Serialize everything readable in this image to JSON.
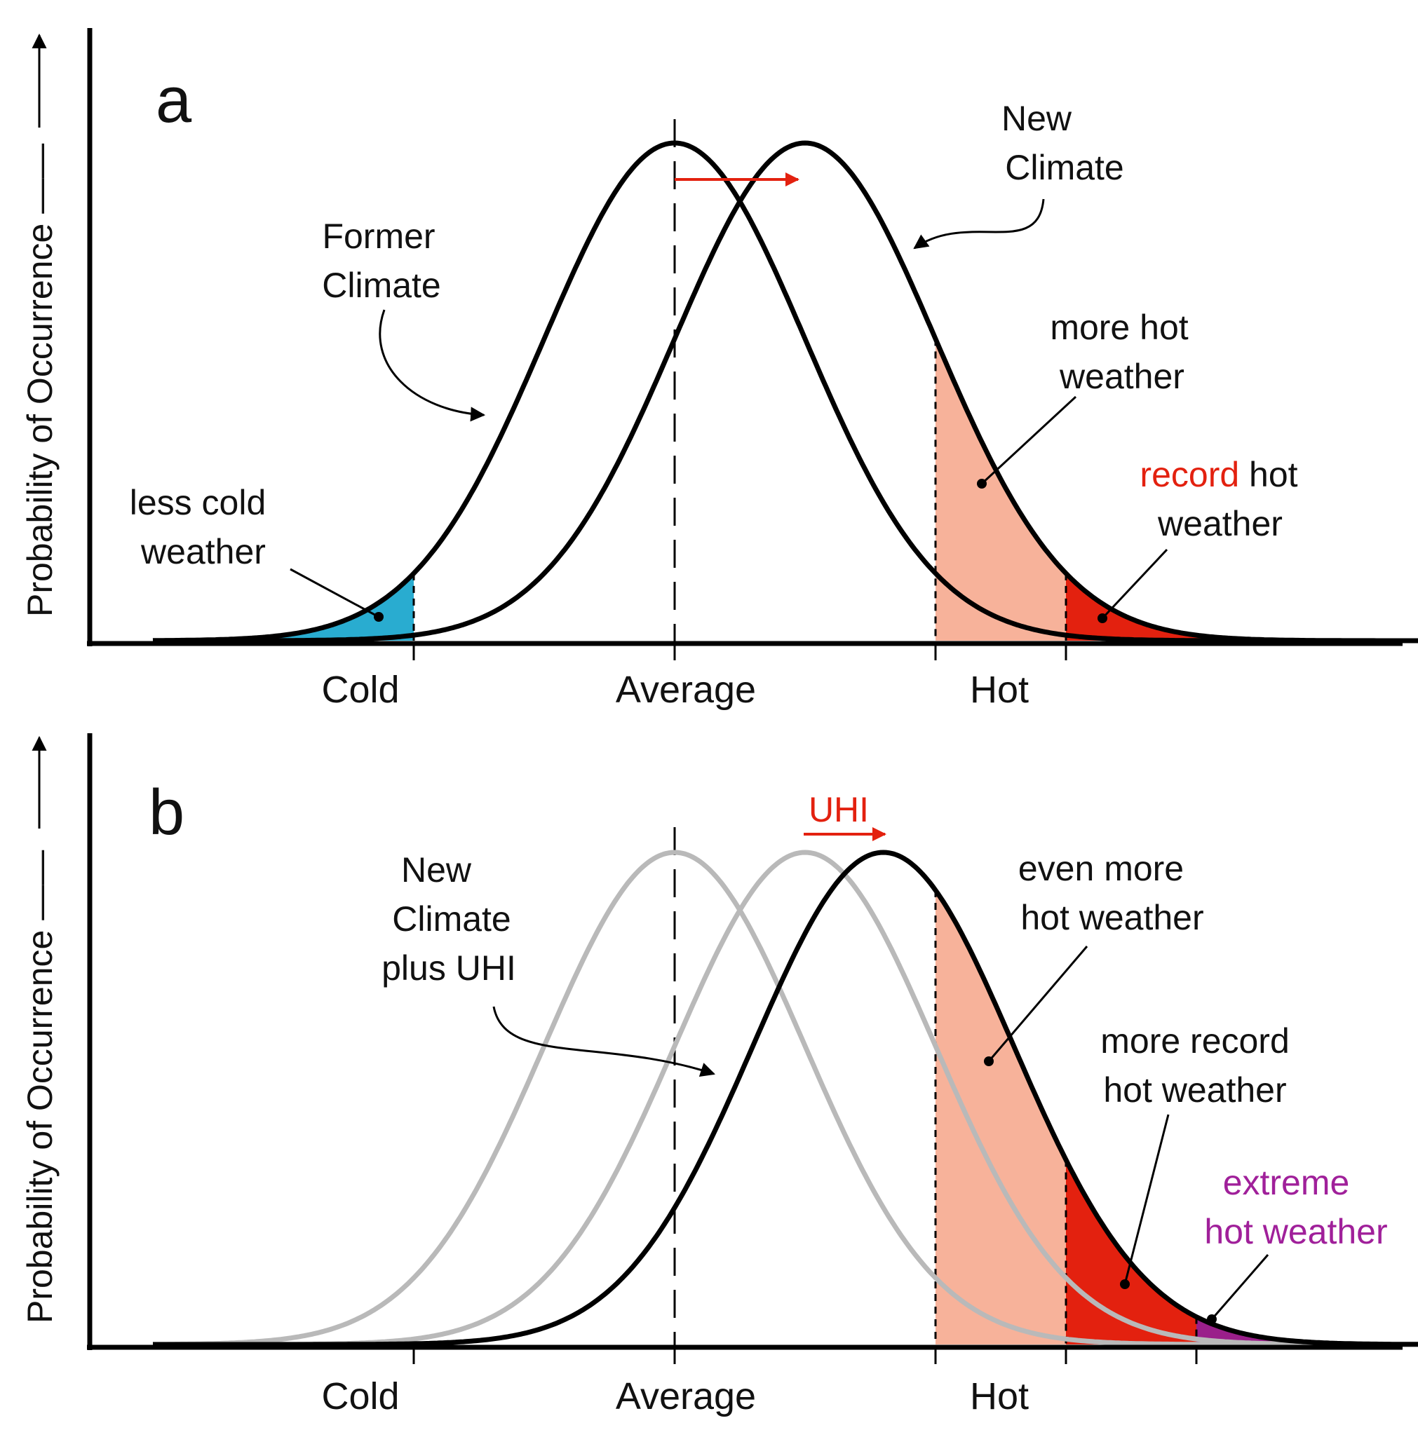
{
  "y_axis_label": "Probability of Occurrence ——",
  "x_ticks": {
    "cold": "Cold",
    "average": "Average",
    "hot": "Hot"
  },
  "colors": {
    "cold_fill": "#29acd0",
    "hot_fill": "#f7b29a",
    "record_fill": "#e3210f",
    "extreme_fill": "#9a1f8a",
    "shift_arrow": "#e3210f",
    "old_curve": "#b9b9b9",
    "extreme_text": "#a0209a"
  },
  "panel_a": {
    "letter": "a",
    "former_climate": [
      "Former",
      "Climate"
    ],
    "new_climate": [
      "New",
      "Climate"
    ],
    "less_cold": [
      "less cold",
      "weather"
    ],
    "more_hot": [
      "more hot",
      "weather"
    ],
    "record_word": "record",
    "record_rest": " hot",
    "record_line2": "weather"
  },
  "panel_b": {
    "letter": "b",
    "uhi": "UHI",
    "new_climate_uhi": [
      "New",
      "Climate",
      "plus UHI"
    ],
    "even_more_hot": [
      "even more",
      "hot weather"
    ],
    "more_record": [
      "more record",
      "hot weather"
    ],
    "extreme": [
      "extreme",
      "hot weather"
    ]
  },
  "chart_data": [
    {
      "type": "area",
      "panel": "a",
      "xlabel": "",
      "ylabel": "Probability of Occurrence",
      "x_tick_labels": [
        "Cold",
        "Average",
        "Hot"
      ],
      "x_range": [
        -4,
        6
      ],
      "series": [
        {
          "name": "Former Climate",
          "distribution": "normal",
          "mean": 0,
          "sd": 1
        },
        {
          "name": "New Climate",
          "distribution": "normal",
          "mean": 1,
          "sd": 1
        }
      ],
      "thresholds": {
        "cold": -2,
        "hot": 2,
        "record": 3
      },
      "shaded_regions": [
        "less cold weather",
        "more hot weather",
        "record hot weather"
      ]
    },
    {
      "type": "area",
      "panel": "b",
      "xlabel": "",
      "ylabel": "Probability of Occurrence",
      "x_tick_labels": [
        "Cold",
        "Average",
        "Hot"
      ],
      "x_range": [
        -4,
        6
      ],
      "series": [
        {
          "name": "Former Climate",
          "distribution": "normal",
          "mean": 0,
          "sd": 1
        },
        {
          "name": "New Climate",
          "distribution": "normal",
          "mean": 1,
          "sd": 1
        },
        {
          "name": "New Climate plus UHI",
          "distribution": "normal",
          "mean": 1.6,
          "sd": 1
        }
      ],
      "thresholds": {
        "cold": -2,
        "hot": 2,
        "record": 3,
        "extreme": 4
      },
      "shaded_regions": [
        "even more hot weather",
        "more record hot weather",
        "extreme hot weather"
      ]
    }
  ]
}
